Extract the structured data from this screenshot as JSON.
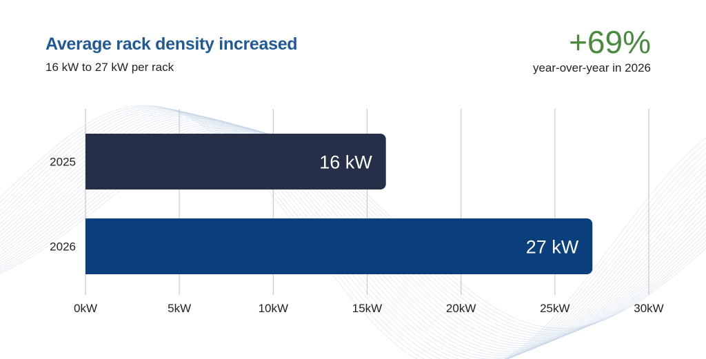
{
  "header": {
    "title": "Average rack density increased",
    "subtitle": "16 kW to 27 kW per rack"
  },
  "stat": {
    "value": "+69%",
    "caption": "year-over-year in 2026"
  },
  "colors": {
    "title": "#1f5a96",
    "stat": "#4a8a3f",
    "bar_2025": "#262f48",
    "bar_2026": "#0b3f7c",
    "grid": "#c9c9c9",
    "waves": "#b9cce2"
  },
  "chart_data": {
    "type": "bar",
    "orientation": "horizontal",
    "categories": [
      "2025",
      "2026"
    ],
    "values": [
      16,
      27
    ],
    "value_labels": [
      "16 kW",
      "27 kW"
    ],
    "xlim": [
      0,
      30
    ],
    "xticks": [
      0,
      5,
      10,
      15,
      20,
      25,
      30
    ],
    "xtick_labels": [
      "0kW",
      "5kW",
      "10kW",
      "15kW",
      "20kW",
      "25kW",
      "30kW"
    ],
    "grid": true
  }
}
